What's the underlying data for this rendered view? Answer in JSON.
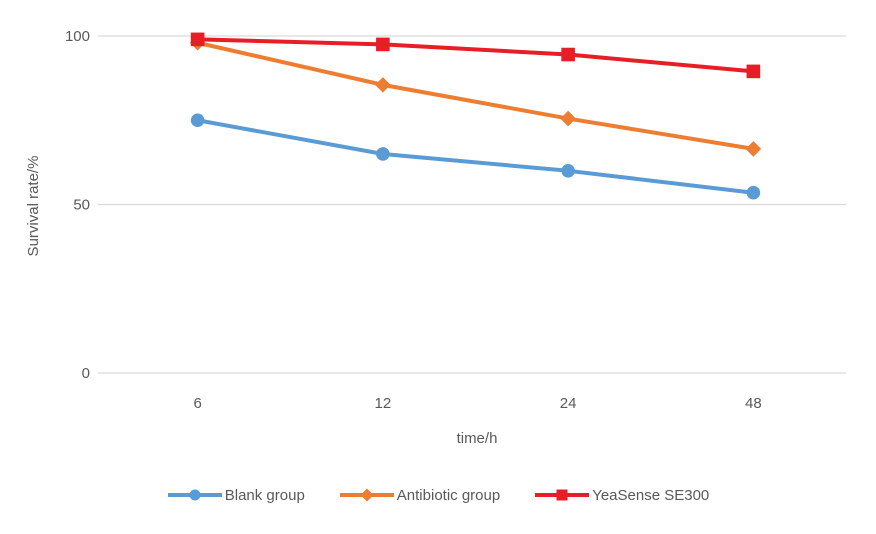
{
  "chart_data": {
    "type": "line",
    "categories": [
      "6",
      "12",
      "24",
      "48"
    ],
    "series": [
      {
        "name": "Blank group",
        "color": "#5B9BD5",
        "marker": "circle",
        "values": [
          75,
          65,
          60,
          53.5
        ]
      },
      {
        "name": "Antibiotic group",
        "color": "#ED7D31",
        "marker": "diamond",
        "values": [
          98,
          85.5,
          75.5,
          66.5
        ]
      },
      {
        "name": "YeaSense SE300",
        "color": "#E81E26",
        "marker": "square",
        "values": [
          99,
          97.5,
          94.5,
          89.5
        ]
      }
    ],
    "xlabel": "time/h",
    "ylabel": "Survival rate/%",
    "yticks": [
      0,
      50,
      100
    ],
    "ylim": [
      0,
      100
    ],
    "grid": "horizontal",
    "legend_position": "bottom"
  },
  "colors": {
    "gridline": "#D9D9D9",
    "axis_line": "#D9D9D9",
    "text": "#595959",
    "background": "#FFFFFF"
  }
}
